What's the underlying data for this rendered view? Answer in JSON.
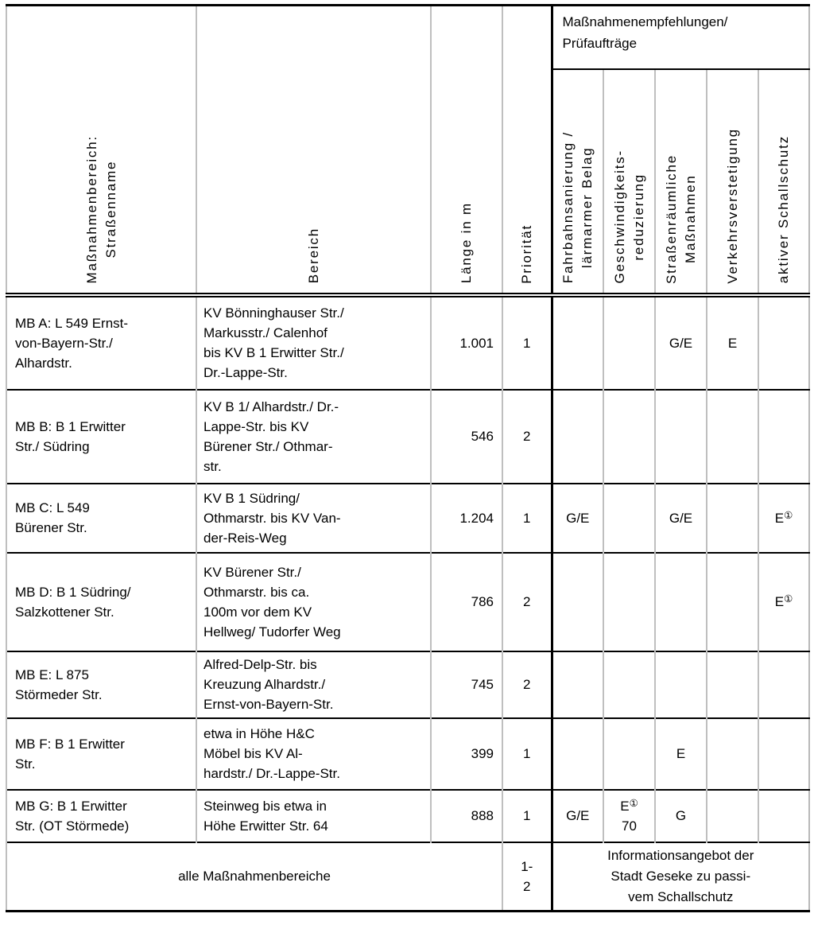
{
  "header": {
    "col1": "Maßnahmenbereich:\nStraßenname",
    "col2": "Bereich",
    "col3": "Länge in m",
    "col4": "Priorität",
    "group": "Maßnahmenempfehlungen/\nPrüfaufträge",
    "measures": [
      "Fahrbahnsanierung /\nlärmarmer Belag",
      "Geschwindigkeits-\nreduzierung",
      "Straßenräumliche\nMaßnahmen",
      "Verkehrsverstetigung",
      "aktiver Schallschutz"
    ]
  },
  "rows": [
    {
      "name": "MB A: L 549 Ernst-\nvon-Bayern-Str./\nAlhardstr.",
      "bereich": "KV Bönninghauser Str./\nMarkusstr./ Calenhof\nbis KV B 1 Erwitter Str./\nDr.-Lappe-Str.",
      "laenge": "1.001",
      "prioritaet": "1",
      "fahrbahnsanierung": "",
      "geschwindigkeitsreduzierung": "",
      "strassenraeumlich": "G/E",
      "verkehrsverstetigung": "E",
      "schallschutz": ""
    },
    {
      "name": "MB B: B 1 Erwitter\nStr./ Südring",
      "bereich": "KV B 1/ Alhardstr./ Dr.-\nLappe-Str. bis KV\nBürener Str./ Othmar-\nstr.",
      "laenge": "546",
      "prioritaet": "2",
      "fahrbahnsanierung": "",
      "geschwindigkeitsreduzierung": "",
      "strassenraeumlich": "",
      "verkehrsverstetigung": "",
      "schallschutz": ""
    },
    {
      "name": "MB C: L 549\nBürener Str.",
      "bereich": "KV B 1 Südring/\nOthmarstr. bis KV Van-\nder-Reis-Weg",
      "laenge": "1.204",
      "prioritaet": "1",
      "fahrbahnsanierung": "G/E",
      "geschwindigkeitsreduzierung": "",
      "strassenraeumlich": "G/E",
      "verkehrsverstetigung": "",
      "schallschutz": "E①"
    },
    {
      "name": "MB D: B 1 Südring/\nSalzkottener Str.",
      "bereich": "KV Bürener Str./\nOthmarstr. bis ca.\n100m vor dem KV\nHellweg/ Tudorfer Weg",
      "laenge": "786",
      "prioritaet": "2",
      "fahrbahnsanierung": "",
      "geschwindigkeitsreduzierung": "",
      "strassenraeumlich": "",
      "verkehrsverstetigung": "",
      "schallschutz": "E①"
    },
    {
      "name": "MB E: L 875\nStörmeder Str.",
      "bereich": "Alfred-Delp-Str. bis\nKreuzung Alhardstr./\nErnst-von-Bayern-Str.",
      "laenge": "745",
      "prioritaet": "2",
      "fahrbahnsanierung": "",
      "geschwindigkeitsreduzierung": "",
      "strassenraeumlich": "",
      "verkehrsverstetigung": "",
      "schallschutz": ""
    },
    {
      "name": "MB F: B 1 Erwitter\nStr.",
      "bereich": "etwa in Höhe H&C\nMöbel bis KV Al-\nhardstr./ Dr.-Lappe-Str.",
      "laenge": "399",
      "prioritaet": "1",
      "fahrbahnsanierung": "",
      "geschwindigkeitsreduzierung": "",
      "strassenraeumlich": "E",
      "verkehrsverstetigung": "",
      "schallschutz": ""
    },
    {
      "name": "MB G: B 1 Erwitter\nStr. (OT Störmede)",
      "bereich": "Steinweg bis etwa in\nHöhe Erwitter Str. 64",
      "laenge": "888",
      "prioritaet": "1",
      "fahrbahnsanierung": "G/E",
      "geschwindigkeitsreduzierung": "E①\n70",
      "strassenraeumlich": "G",
      "verkehrsverstetigung": "",
      "schallschutz": ""
    }
  ],
  "footer": {
    "label": "alle Maßnahmenbereiche",
    "prioritaet": "1-\n2",
    "info": "Informationsangebot der\nStadt Geseke zu passi-\nvem Schallschutz"
  }
}
